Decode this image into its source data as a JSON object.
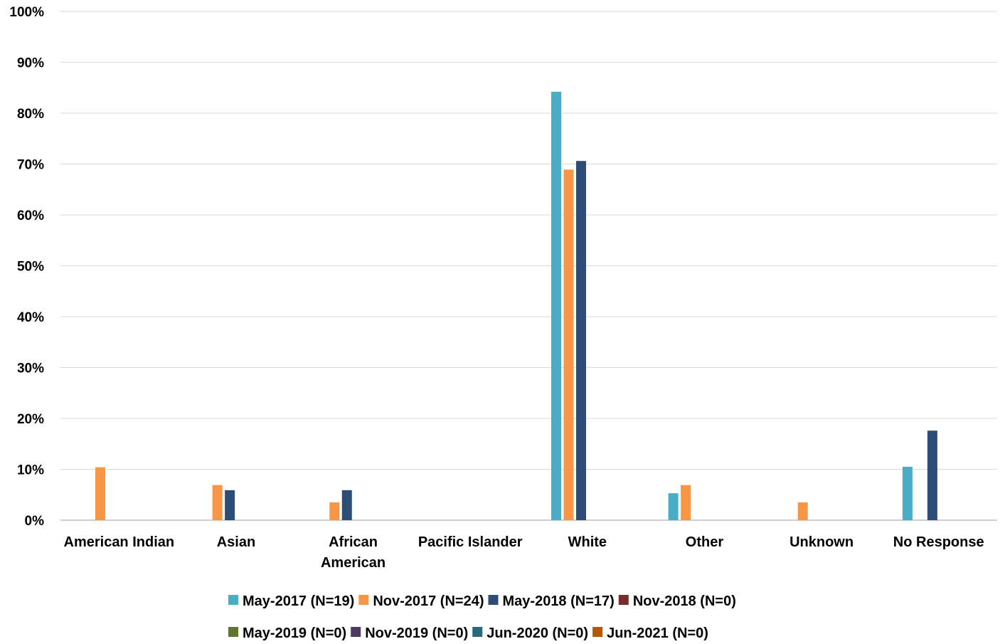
{
  "chart_data": {
    "type": "bar",
    "categories": [
      [
        "American Indian"
      ],
      [
        "Asian"
      ],
      [
        "African",
        "American"
      ],
      [
        "Pacific Islander"
      ],
      [
        "White"
      ],
      [
        "Other"
      ],
      [
        "Unknown"
      ],
      [
        "No Response"
      ]
    ],
    "series": [
      {
        "name": "May-2017 (N=19)",
        "color": "#4BACC6",
        "values": [
          0,
          0,
          0,
          0,
          84.2,
          5.3,
          0,
          10.5
        ]
      },
      {
        "name": "Nov-2017 (N=24)",
        "color": "#F79646",
        "values": [
          10.4,
          6.9,
          3.5,
          0,
          68.9,
          6.9,
          3.5,
          0
        ]
      },
      {
        "name": "May-2018 (N=17)",
        "color": "#2C4D75",
        "values": [
          0,
          5.9,
          5.9,
          0,
          70.6,
          0,
          0,
          17.6
        ]
      },
      {
        "name": "Nov-2018 (N=0)",
        "color": "#772C2A",
        "values": [
          0,
          0,
          0,
          0,
          0,
          0,
          0,
          0
        ]
      },
      {
        "name": "May-2019 (N=0)",
        "color": "#5F7530",
        "values": [
          0,
          0,
          0,
          0,
          0,
          0,
          0,
          0
        ]
      },
      {
        "name": "Nov-2019 (N=0)",
        "color": "#4D3B62",
        "values": [
          0,
          0,
          0,
          0,
          0,
          0,
          0,
          0
        ]
      },
      {
        "name": "Jun-2020 (N=0)",
        "color": "#276A7C",
        "values": [
          0,
          0,
          0,
          0,
          0,
          0,
          0,
          0
        ]
      },
      {
        "name": "Jun-2021 (N=0)",
        "color": "#B65708",
        "values": [
          0,
          0,
          0,
          0,
          0,
          0,
          0,
          0
        ]
      }
    ],
    "ylim": [
      0,
      100
    ],
    "yticks": [
      "0%",
      "10%",
      "20%",
      "30%",
      "40%",
      "50%",
      "60%",
      "70%",
      "80%",
      "90%",
      "100%"
    ],
    "grid": true,
    "legend_position": "bottom",
    "title": "",
    "xlabel": "",
    "ylabel": ""
  }
}
